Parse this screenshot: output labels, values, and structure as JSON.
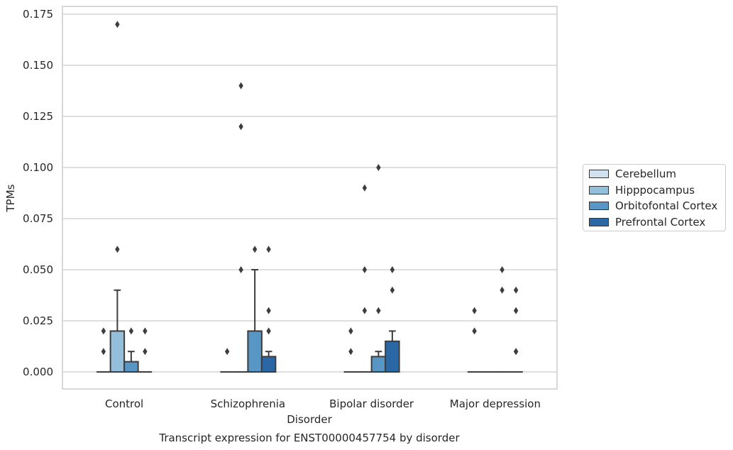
{
  "chart_data": {
    "type": "box",
    "title": "Transcript expression for ENST00000457754 by disorder",
    "xlabel": "Disorder",
    "ylabel": "TPMs",
    "ylim": [
      -0.0085,
      0.179
    ],
    "yticks": [
      "0.000",
      "0.025",
      "0.050",
      "0.075",
      "0.100",
      "0.125",
      "0.150",
      "0.175"
    ],
    "ytick_values": [
      0,
      0.025,
      0.05,
      0.075,
      0.1,
      0.125,
      0.15,
      0.175
    ],
    "grid": "horizontal",
    "legend_position": "right",
    "categories": [
      "Control",
      "Schizophrenia",
      "Bipolar disorder",
      "Major depression"
    ],
    "series": [
      {
        "name": "Cerebellum",
        "color": "#d1e1f0",
        "boxes": [
          {
            "q1": 0,
            "median": 0,
            "q3": 0,
            "whisker_low": 0,
            "whisker_high": 0,
            "outliers": [
              0.01,
              0.02
            ]
          },
          {
            "q1": 0,
            "median": 0,
            "q3": 0,
            "whisker_low": 0,
            "whisker_high": 0,
            "outliers": [
              0.01
            ]
          },
          {
            "q1": 0,
            "median": 0,
            "q3": 0,
            "whisker_low": 0,
            "whisker_high": 0,
            "outliers": [
              0.01,
              0.02
            ]
          },
          {
            "q1": 0,
            "median": 0,
            "q3": 0,
            "whisker_low": 0,
            "whisker_high": 0,
            "outliers": [
              0.02,
              0.03
            ]
          }
        ]
      },
      {
        "name": "Hipppocampus",
        "color": "#93bfda",
        "boxes": [
          {
            "q1": 0,
            "median": 0,
            "q3": 0.02,
            "whisker_low": 0,
            "whisker_high": 0.04,
            "outliers": [
              0.06,
              0.17
            ]
          },
          {
            "q1": 0,
            "median": 0,
            "q3": 0,
            "whisker_low": 0,
            "whisker_high": 0,
            "outliers": [
              0.05,
              0.12,
              0.14
            ]
          },
          {
            "q1": 0,
            "median": 0,
            "q3": 0,
            "whisker_low": 0,
            "whisker_high": 0,
            "outliers": [
              0.03,
              0.05,
              0.09
            ]
          },
          {
            "q1": 0,
            "median": 0,
            "q3": 0,
            "whisker_low": 0,
            "whisker_high": 0,
            "outliers": []
          }
        ]
      },
      {
        "name": "Orbitofontal Cortex",
        "color": "#5796c5",
        "boxes": [
          {
            "q1": 0,
            "median": 0,
            "q3": 0.005,
            "whisker_low": 0,
            "whisker_high": 0.01,
            "outliers": [
              0.02
            ]
          },
          {
            "q1": 0,
            "median": 0,
            "q3": 0.02,
            "whisker_low": 0,
            "whisker_high": 0.05,
            "outliers": [
              0.06
            ]
          },
          {
            "q1": 0,
            "median": 0,
            "q3": 0.0075,
            "whisker_low": 0,
            "whisker_high": 0.01,
            "outliers": [
              0.03,
              0.1
            ]
          },
          {
            "q1": 0,
            "median": 0,
            "q3": 0,
            "whisker_low": 0,
            "whisker_high": 0,
            "outliers": [
              0.04,
              0.05
            ]
          }
        ]
      },
      {
        "name": "Prefrontal Cortex",
        "color": "#2a67a4",
        "boxes": [
          {
            "q1": 0,
            "median": 0,
            "q3": 0,
            "whisker_low": 0,
            "whisker_high": 0,
            "outliers": [
              0.01,
              0.02
            ]
          },
          {
            "q1": 0,
            "median": 0,
            "q3": 0.0075,
            "whisker_low": 0,
            "whisker_high": 0.01,
            "outliers": [
              0.02,
              0.03,
              0.06
            ]
          },
          {
            "q1": 0,
            "median": 0,
            "q3": 0.015,
            "whisker_low": 0,
            "whisker_high": 0.02,
            "outliers": [
              0.04,
              0.05
            ]
          },
          {
            "q1": 0,
            "median": 0,
            "q3": 0,
            "whisker_low": 0,
            "whisker_high": 0,
            "outliers": [
              0.01,
              0.01,
              0.03,
              0.04
            ]
          }
        ]
      }
    ]
  }
}
